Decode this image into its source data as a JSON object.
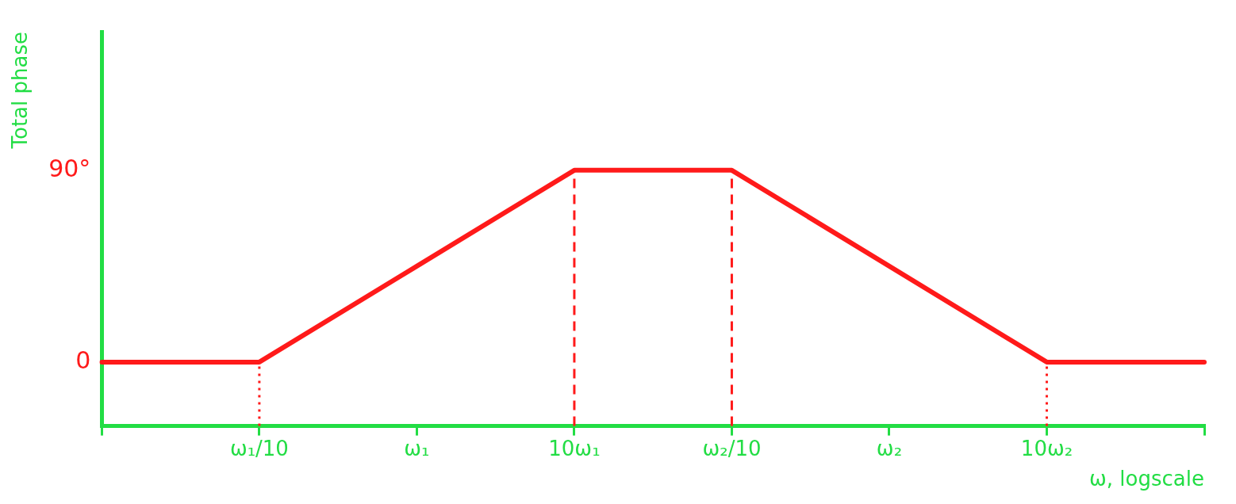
{
  "chart_data": {
    "type": "line",
    "xlabel": "ω, logscale",
    "ylabel": "Total phase",
    "categories": [
      null,
      "ω₁/10",
      "ω₁",
      "10ω₁",
      "ω₂/10",
      "ω₂",
      "10ω₂",
      null
    ],
    "series": [
      {
        "color": "#ff1a1a",
        "values": [
          0,
          0,
          45,
          90,
          90,
          45,
          0,
          0
        ]
      }
    ],
    "ylim": [
      -30,
      155
    ],
    "yticks": [
      0,
      {
        "value": 90,
        "label": "90°"
      }
    ],
    "ref_lines": [
      {
        "axis": "x",
        "value": "ω₁/10",
        "color": "#ff1a1a",
        "line_style": "dotted"
      },
      {
        "axis": "x",
        "value": "10ω₁",
        "color": "#ff1a1a",
        "line_style": "dashed"
      },
      {
        "axis": "x",
        "value": "ω₂/10",
        "color": "#ff1a1a",
        "line_style": "dashed"
      },
      {
        "axis": "x",
        "value": "10ω₂",
        "color": "#ff1a1a",
        "line_style": "dotted"
      }
    ],
    "grid": false,
    "legend": false,
    "marker": "none",
    "line_style": "solid"
  }
}
